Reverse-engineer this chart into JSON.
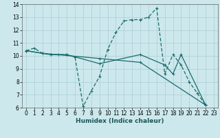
{
  "xlabel": "Humidex (Indice chaleur)",
  "bg_color": "#cce8ec",
  "grid_color": "#aacdd4",
  "line_color": "#1a6b6b",
  "xlim": [
    -0.5,
    23.5
  ],
  "ylim": [
    6,
    14
  ],
  "xticks": [
    0,
    1,
    2,
    3,
    4,
    5,
    6,
    7,
    8,
    9,
    10,
    11,
    12,
    13,
    14,
    15,
    16,
    17,
    18,
    19,
    20,
    21,
    22,
    23
  ],
  "yticks": [
    6,
    7,
    8,
    9,
    10,
    11,
    12,
    13,
    14
  ],
  "series": [
    {
      "x": [
        0,
        1,
        2,
        3,
        4,
        5,
        6,
        7,
        8,
        9,
        10,
        11,
        12,
        13,
        14,
        15,
        16,
        17,
        18,
        19,
        20,
        21,
        22
      ],
      "y": [
        10.4,
        10.6,
        10.2,
        10.1,
        10.1,
        10.1,
        9.9,
        6.1,
        7.3,
        8.4,
        10.5,
        11.8,
        12.7,
        12.8,
        12.8,
        13.0,
        13.7,
        8.6,
        10.1,
        9.3,
        8.0,
        7.1,
        6.2
      ]
    },
    {
      "x": [
        0,
        2,
        3,
        5,
        9,
        14,
        17,
        18,
        19,
        22
      ],
      "y": [
        10.4,
        10.2,
        10.1,
        10.1,
        9.4,
        10.1,
        9.3,
        8.6,
        10.1,
        6.2
      ]
    },
    {
      "x": [
        0,
        2,
        9,
        14,
        22
      ],
      "y": [
        10.4,
        10.2,
        9.8,
        9.5,
        6.2
      ]
    }
  ]
}
